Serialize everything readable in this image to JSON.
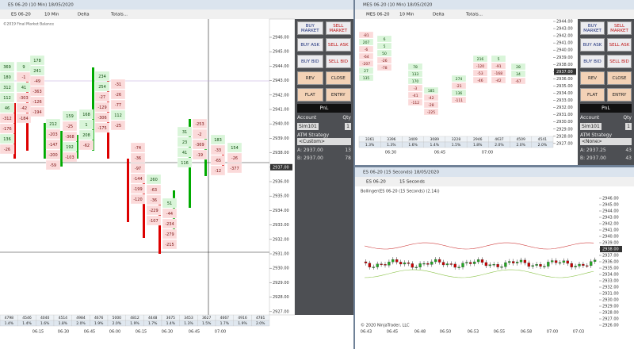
{
  "left": {
    "title": "ES 06-20 (10 Min)  18/05/2020",
    "toolbar": [
      "ES 06-20",
      "10 Min",
      "Delta",
      "Totals..."
    ],
    "copyright": "©2019 Final Market Balance",
    "prices": [
      "2946.00",
      "2945.00",
      "2944.00",
      "2943.00",
      "2942.00",
      "2941.00",
      "2940.00",
      "2939.00",
      "2938.00",
      "2937.00",
      "2936.00",
      "2935.00",
      "2934.00",
      "2933.00",
      "2932.00",
      "2931.00",
      "2930.00",
      "2929.00",
      "2928.00",
      "2927.00"
    ],
    "times": [
      "06:15",
      "06:30",
      "06:45",
      "06:00",
      "06:15",
      "06:30",
      "06:45",
      "07:00"
    ],
    "volumes": [
      "4798",
      "4546",
      "4040",
      "4514",
      "4984",
      "4676",
      "5000",
      "4812",
      "4448",
      "3675",
      "3453",
      "3627",
      "4667",
      "4916",
      "4781"
    ],
    "percents": [
      "1.4%",
      "1.4%",
      "1.6%",
      "1.8%",
      "2.0%",
      "1.9%",
      "2.0%",
      "1.9%",
      "1.7%",
      "1.4%",
      "1.3%",
      "1.5%",
      "1.7%",
      "1.9%",
      "2.0%"
    ],
    "footprint": [
      [
        "369",
        "180",
        "312",
        "112",
        "46",
        "-312",
        "-176",
        "136",
        "-26"
      ],
      [
        "9",
        "-1",
        "41",
        "-303",
        "-42",
        "-184"
      ],
      [
        "178",
        "241",
        "-49",
        "-363",
        "-126",
        "-194"
      ],
      [
        "212",
        "-203",
        "-147",
        "-200",
        "-59"
      ],
      [
        "159",
        "-25",
        "-368",
        "192",
        "-103"
      ],
      [
        "168",
        "1",
        "208",
        "-62"
      ],
      [
        "234",
        "254",
        "-27",
        "-129",
        "-306",
        "-175"
      ],
      [
        "-31",
        "-26",
        "-77",
        "112",
        "-25"
      ],
      [
        "-74",
        "-36",
        "-97",
        "-144",
        "-199",
        "-120"
      ],
      [
        "260",
        "-63",
        "-36",
        "-229",
        "-107"
      ],
      [
        "51",
        "-44",
        "-234",
        "-279",
        "-215"
      ],
      [
        "31",
        "23",
        "41",
        "116"
      ],
      [
        "-253",
        "-2",
        "-369",
        "-19"
      ],
      [
        "183",
        "-33",
        "-65",
        "-12"
      ],
      [
        "154",
        "-26",
        "-377"
      ]
    ],
    "panel": {
      "buttons": [
        "BUY MARKET",
        "SELL MARKET",
        "BUY ASK",
        "SELL ASK",
        "BUY BID",
        "SELL BID",
        "REV",
        "CLOSE",
        "FLAT",
        "ENTRY"
      ],
      "pnl": "PnL",
      "account_label": "Account",
      "qty_label": "Qty",
      "account": "Sim101",
      "qty": "1",
      "atm_label": "ATM Strategy",
      "atm": "<Custom>",
      "ask": "A: 2937.00",
      "ask_size": "13",
      "bid": "B: 2937.00",
      "bid_size": "78"
    }
  },
  "top_right": {
    "title": "MES 06-20 (10 Min)  18/05/2020",
    "toolbar": [
      "MES 06-20",
      "10 Min",
      "Delta",
      "Totals..."
    ],
    "prices": [
      "2944.00",
      "2943.00",
      "2942.00",
      "2941.00",
      "2940.00",
      "2939.00",
      "2938.00",
      "2937.00",
      "2936.00",
      "2935.00",
      "2934.00",
      "2933.00",
      "2932.00",
      "2931.00",
      "2930.00",
      "2929.00",
      "2928.00",
      "2927.00"
    ],
    "times": [
      "06:30",
      "06:45",
      "07:00"
    ],
    "volumes": [
      "3361",
      "3396",
      "3409",
      "3089",
      "3228",
      "2946",
      "4637",
      "4509",
      "4541"
    ],
    "percents": [
      "1.3%",
      "1.3%",
      "1.6%",
      "1.4%",
      "1.5%",
      "1.8%",
      "2.0%",
      "2.0%",
      "2.0%"
    ],
    "footprint": [
      [
        "-81",
        "207",
        "-6",
        "-64",
        "-207",
        "27",
        "135"
      ],
      [
        "6",
        "5",
        "50",
        "-26",
        "-78"
      ],
      [
        "78",
        "133",
        "170",
        "-3",
        "-41",
        "-112"
      ],
      [
        "185",
        "-42",
        "-28",
        "-225"
      ],
      [
        "274",
        "-21",
        "136",
        "-111"
      ],
      [
        "216",
        "-120",
        "-53",
        "-46"
      ],
      [
        "5",
        "-91",
        "-168",
        "-42"
      ],
      [
        "28",
        "34",
        "-67"
      ]
    ],
    "panel": {
      "buttons": [
        "BUY MARKET",
        "SELL MARKET",
        "BUY ASK",
        "SELL ASK",
        "BUY BID",
        "SELL BID",
        "REV",
        "CLOSE",
        "FLAT",
        "ENTRY"
      ],
      "pnl": "PnL",
      "account_label": "Account",
      "qty_label": "Qty",
      "account": "Sim101",
      "qty": "1",
      "atm_label": "ATM Strategy",
      "atm": "<None>",
      "ask": "A: 2937.25",
      "ask_size": "43",
      "bid": "B: 2937.00",
      "bid_size": "43"
    }
  },
  "bottom_right": {
    "title": "ES 06-20 (15 Seconds)  18/05/2020",
    "toolbar": [
      "ES 06-20",
      "15 Seconds"
    ],
    "indicator": "Bollinger(ES 06-20 (15 Seconds) (2.14))",
    "copyright": "© 2020 NinjaTrader, LLC",
    "prices": [
      "2946.00",
      "2945.00",
      "2944.00",
      "2943.00",
      "2942.00",
      "2941.00",
      "2940.00",
      "2939.00",
      "2938.00",
      "2937.00",
      "2936.00",
      "2935.00",
      "2934.00",
      "2933.00",
      "2932.00",
      "2931.00",
      "2930.00",
      "2929.00",
      "2928.00",
      "2927.00",
      "2926.00"
    ],
    "times": [
      "06:43",
      "06:45",
      "06:48",
      "06:50",
      "06:53",
      "06:55",
      "06:58",
      "07:00",
      "07:03"
    ]
  }
}
